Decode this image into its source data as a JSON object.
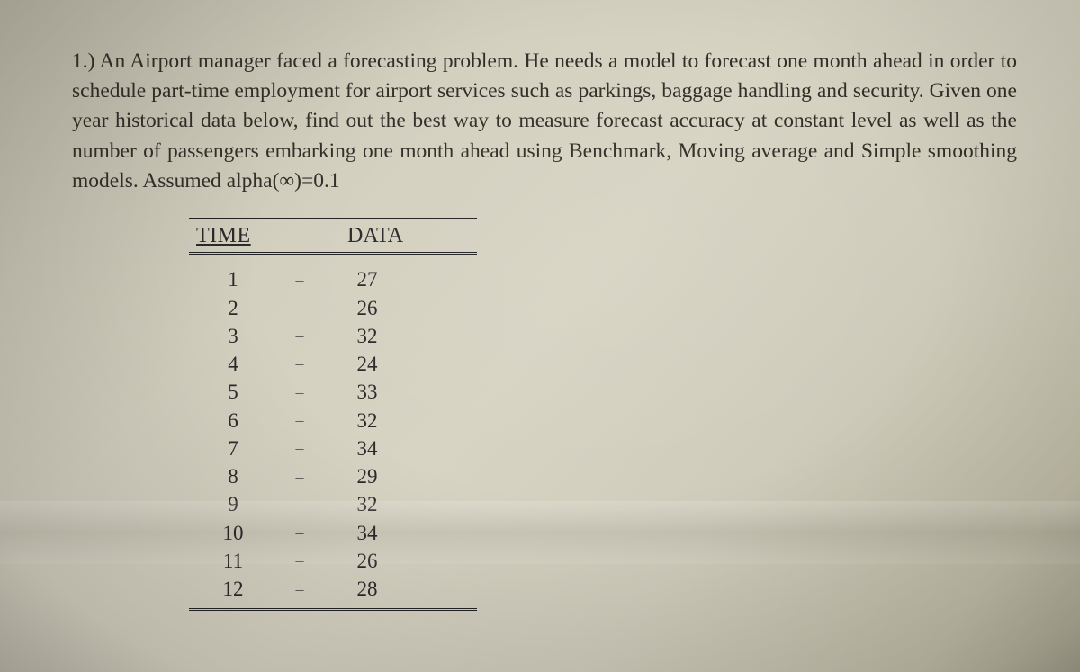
{
  "problem": {
    "number": "1.)",
    "text": "An Airport manager faced a forecasting problem. He needs a model to forecast one month ahead in order to schedule part-time employment for airport services such as parkings, baggage handling and security. Given one year historical data below, find out the best way to measure forecast accuracy at constant level as well as the number of passengers embarking one month ahead using Benchmark, Moving average and Simple smoothing models. Assumed alpha(∞)=0.1"
  },
  "table": {
    "type": "table",
    "columns": [
      "TIME",
      "DATA"
    ],
    "separator": "–",
    "rows": [
      {
        "time": "1",
        "data": "27"
      },
      {
        "time": "2",
        "data": "26"
      },
      {
        "time": "3",
        "data": "32"
      },
      {
        "time": "4",
        "data": "24"
      },
      {
        "time": "5",
        "data": "33"
      },
      {
        "time": "6",
        "data": "32"
      },
      {
        "time": "7",
        "data": "34"
      },
      {
        "time": "8",
        "data": "29"
      },
      {
        "time": "9",
        "data": "32"
      },
      {
        "time": "10",
        "data": "34"
      },
      {
        "time": "11",
        "data": "26"
      },
      {
        "time": "12",
        "data": "28"
      }
    ],
    "header_fontsize": 24,
    "body_fontsize": 23,
    "text_color": "#2a2a2a",
    "rule_color": "#222222",
    "background_color": "transparent"
  },
  "style": {
    "page_bg_gradient": [
      "#b8b4a4",
      "#d8d4c4",
      "#a8a490"
    ],
    "font_family": "Times New Roman",
    "body_text_color": "#303028",
    "problem_fontsize": 23.5
  }
}
